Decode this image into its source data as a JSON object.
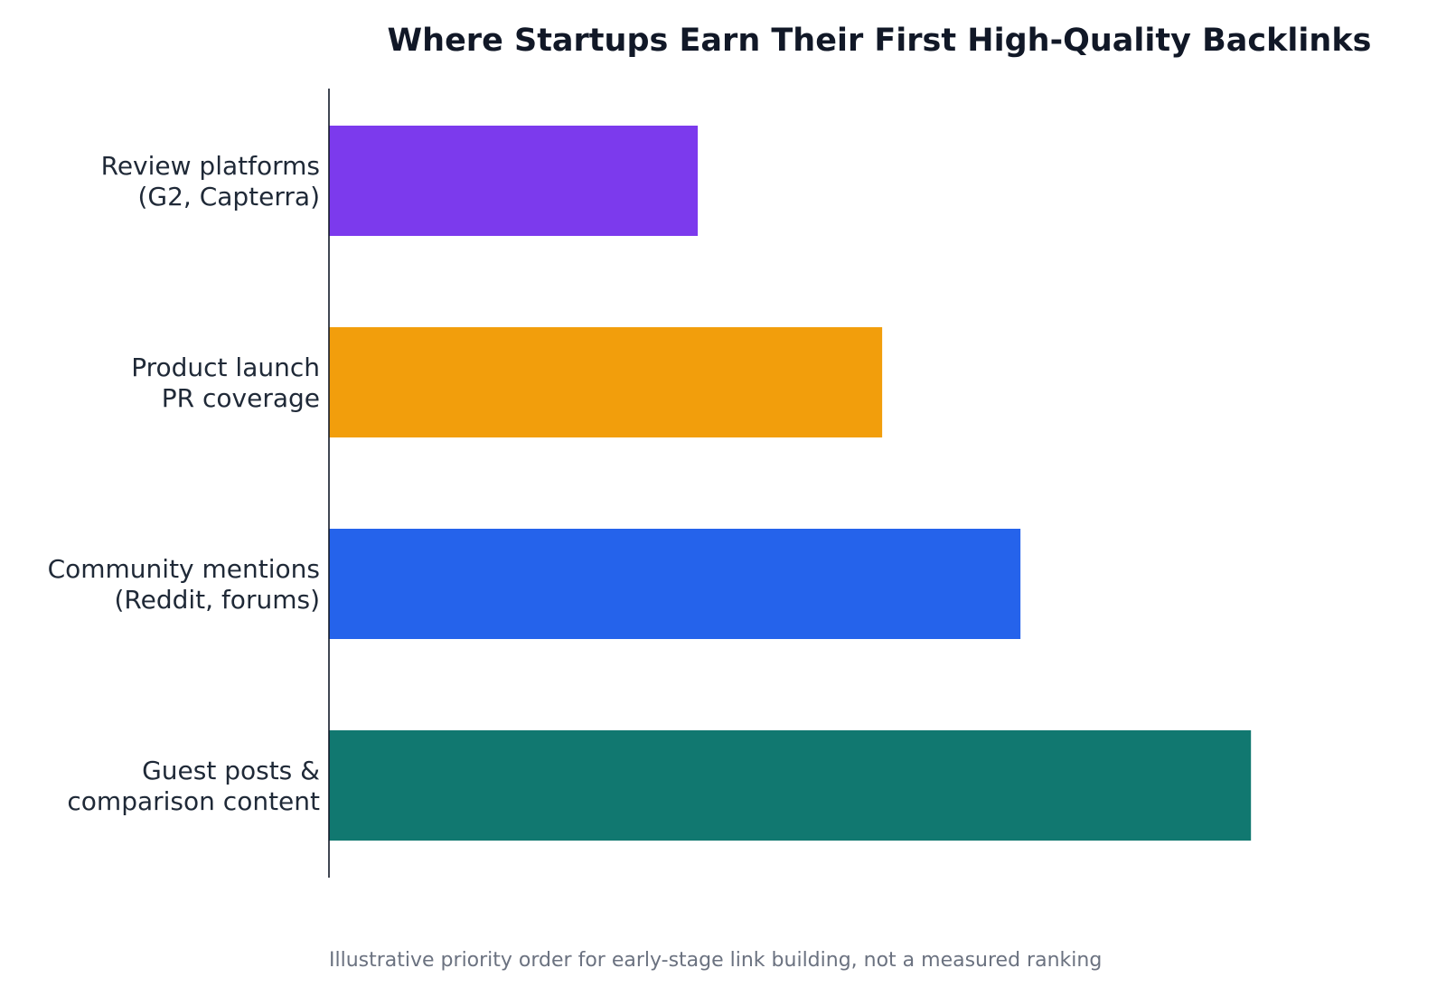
{
  "chart_data": {
    "type": "bar",
    "orientation": "horizontal",
    "title": "Where Startups Earn Their First High-Quality Backlinks",
    "caption": "Illustrative priority order for early-stage link building, not a measured ranking",
    "categories": [
      [
        "Review platforms",
        "(G2, Capterra)"
      ],
      [
        "Product launch",
        "PR coverage"
      ],
      [
        "Community mentions",
        "(Reddit, forums)"
      ],
      [
        "Guest posts &",
        "comparison content"
      ]
    ],
    "values": [
      2,
      3,
      3.75,
      5
    ],
    "colors": [
      "#7c3aed",
      "#f29e0c",
      "#2563eb",
      "#117870"
    ],
    "xlim": [
      0,
      5.2
    ],
    "x_axis_visible": false,
    "grid": false,
    "legend": "none"
  }
}
